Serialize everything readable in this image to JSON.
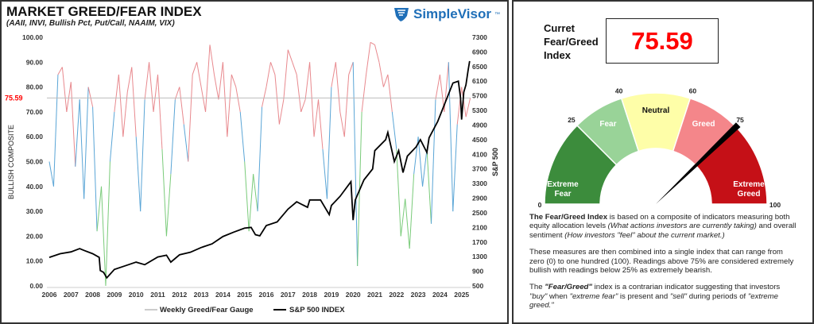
{
  "header": {
    "title": "MARKET GREED/FEAR INDEX",
    "subtitle": "(AAII, INVI, Bullish Pct, Put/Call, NAAIM, VIX)",
    "logo_text": "SimpleVisor",
    "logo_tm": "™"
  },
  "colors": {
    "greed_series": "#e8898e",
    "neutral_series": "#5aa5d6",
    "fear_series": "#7acb7a",
    "sp500": "#000000",
    "current_value": "#ff0000",
    "extreme_fear": "#3c8c3c",
    "fear": "#99d398",
    "neutral": "#fefea8",
    "greed": "#f4868a",
    "extreme_greed": "#c51017"
  },
  "chart_data": {
    "type": "line",
    "ylabel": "BULLISH COMPOSITE",
    "y2label": "S&P 500",
    "ylim": [
      0,
      100
    ],
    "y2lim": [
      500,
      7300
    ],
    "xlim": [
      2006,
      2025.4
    ],
    "yticks": [
      "0.00",
      "10.00",
      "20.00",
      "30.00",
      "40.00",
      "50.00",
      "60.00",
      "70.00",
      "80.00",
      "90.00",
      "100.00"
    ],
    "y2ticks": [
      "500",
      "900",
      "1300",
      "1700",
      "2100",
      "2500",
      "2900",
      "3300",
      "3700",
      "4100",
      "4500",
      "4900",
      "5300",
      "5700",
      "6100",
      "6500",
      "6900",
      "7300"
    ],
    "xticks": [
      "2006",
      "2007",
      "2008",
      "2009",
      "2010",
      "2011",
      "2012",
      "2013",
      "2014",
      "2015",
      "2016",
      "2017",
      "2018",
      "2019",
      "2020",
      "2021",
      "2022",
      "2023",
      "2024",
      "2025"
    ],
    "current_line": {
      "value": 75.59,
      "label": "75.59"
    },
    "grid": false,
    "legend_position": "bottom",
    "series": [
      {
        "name": "Weekly Greed/Fear Gauge",
        "axis": "left",
        "x_start": 2006.0,
        "x_step": 0.2,
        "values": [
          50,
          40,
          85,
          88,
          70,
          82,
          48,
          75,
          35,
          80,
          72,
          22,
          40,
          0,
          50,
          70,
          85,
          60,
          78,
          88,
          60,
          30,
          75,
          90,
          70,
          85,
          55,
          20,
          45,
          75,
          80,
          65,
          50,
          85,
          90,
          80,
          70,
          97,
          85,
          75,
          90,
          60,
          85,
          80,
          70,
          50,
          22,
          45,
          30,
          72,
          80,
          90,
          85,
          65,
          75,
          95,
          90,
          85,
          70,
          75,
          90,
          60,
          75,
          55,
          35,
          80,
          90,
          70,
          60,
          85,
          90,
          8,
          70,
          85,
          98,
          97,
          90,
          80,
          85,
          70,
          55,
          20,
          35,
          15,
          45,
          60,
          40,
          55,
          25,
          75,
          85,
          70,
          90,
          30,
          65,
          80,
          68,
          75.59
        ]
      },
      {
        "name": "S&P 500 INDEX",
        "axis": "right",
        "points": [
          [
            2006,
            1280
          ],
          [
            2006.5,
            1380
          ],
          [
            2007,
            1430
          ],
          [
            2007.4,
            1520
          ],
          [
            2007.6,
            1470
          ],
          [
            2008,
            1380
          ],
          [
            2008.3,
            1280
          ],
          [
            2008.35,
            920
          ],
          [
            2008.5,
            870
          ],
          [
            2008.65,
            720
          ],
          [
            2009,
            950
          ],
          [
            2009.5,
            1050
          ],
          [
            2010,
            1150
          ],
          [
            2010.4,
            1080
          ],
          [
            2011,
            1290
          ],
          [
            2011.4,
            1340
          ],
          [
            2011.6,
            1150
          ],
          [
            2012,
            1350
          ],
          [
            2012.5,
            1420
          ],
          [
            2013,
            1550
          ],
          [
            2013.5,
            1650
          ],
          [
            2014,
            1850
          ],
          [
            2014.5,
            1970
          ],
          [
            2015,
            2080
          ],
          [
            2015.3,
            2100
          ],
          [
            2015.5,
            1900
          ],
          [
            2015.7,
            1870
          ],
          [
            2016,
            2150
          ],
          [
            2016.5,
            2250
          ],
          [
            2017,
            2600
          ],
          [
            2017.4,
            2800
          ],
          [
            2017.9,
            2650
          ],
          [
            2018,
            2850
          ],
          [
            2018.5,
            2850
          ],
          [
            2018.9,
            2450
          ],
          [
            2019,
            2700
          ],
          [
            2019.4,
            2950
          ],
          [
            2019.9,
            3350
          ],
          [
            2020.0,
            2300
          ],
          [
            2020.1,
            2850
          ],
          [
            2020.5,
            3400
          ],
          [
            2020.9,
            3700
          ],
          [
            2021.0,
            4200
          ],
          [
            2021.5,
            4500
          ],
          [
            2021.6,
            4700
          ],
          [
            2021.9,
            3900
          ],
          [
            2022.1,
            4200
          ],
          [
            2022.3,
            3600
          ],
          [
            2022.5,
            4050
          ],
          [
            2022.9,
            4300
          ],
          [
            2023.1,
            4500
          ],
          [
            2023.4,
            4150
          ],
          [
            2023.5,
            4550
          ],
          [
            2023.9,
            5000
          ],
          [
            2024.3,
            5600
          ],
          [
            2024.6,
            6050
          ],
          [
            2024.85,
            6100
          ],
          [
            2024.95,
            5650
          ],
          [
            2025.0,
            5050
          ],
          [
            2025.1,
            5800
          ],
          [
            2025.2,
            6000
          ],
          [
            2025.3,
            6400
          ],
          [
            2025.37,
            6650
          ]
        ]
      }
    ]
  },
  "legend": {
    "gauge_label": "Weekly Greed/Fear Gauge",
    "sp_label": "S&P 500 INDEX"
  },
  "current": {
    "label_line1": "Curret",
    "label_line2": "Fear/Greed",
    "label_line3": "Index",
    "value": "75.59"
  },
  "gauge": {
    "value": 75.59,
    "min_label": "0",
    "max_label": "100",
    "segments": [
      {
        "from": 0,
        "to": 25,
        "label1": "Extreme",
        "label2": "Fear",
        "color": "#3c8c3c",
        "text_color": "#ffffff"
      },
      {
        "from": 25,
        "to": 40,
        "label1": "Fear",
        "label2": "",
        "color": "#99d398",
        "text_color": "#ffffff"
      },
      {
        "from": 40,
        "to": 60,
        "label1": "Neutral",
        "label2": "",
        "color": "#fefea8",
        "text_color": "#111111"
      },
      {
        "from": 60,
        "to": 75,
        "label1": "Greed",
        "label2": "",
        "color": "#f4868a",
        "text_color": "#ffffff"
      },
      {
        "from": 75,
        "to": 100,
        "label1": "Extreme",
        "label2": "Greed",
        "color": "#c51017",
        "text_color": "#ffffff"
      }
    ],
    "tick_labels": [
      "25",
      "40",
      "60",
      "75"
    ]
  },
  "description": {
    "p1_bold": "The Fear/Greed Index",
    "p1_a": " is based on a composite of indicators measuring both equity allocation levels ",
    "p1_i1": "(What actions investors are currently taking)",
    "p1_b": " and overall sentiment ",
    "p1_i2": "(How investors \"feel\" about the current market.)",
    "p2": "These measures are then combined into a single index that can range from zero (0) to one hundred (100). Readings above 75% are considered extremely bullish with readings below 25% as extremely bearish.",
    "p3_a": "The ",
    "p3_bi": "\"Fear/Greed\"",
    "p3_b": " index is a contrarian indicator suggesting that investors ",
    "p3_i1": "\"buy\"",
    "p3_c": " when ",
    "p3_i2": "\"extreme fear\"",
    "p3_d": " is present and ",
    "p3_i3": "\"sell\"",
    "p3_e": " during periods of ",
    "p3_i4": "\"extreme greed.\""
  }
}
